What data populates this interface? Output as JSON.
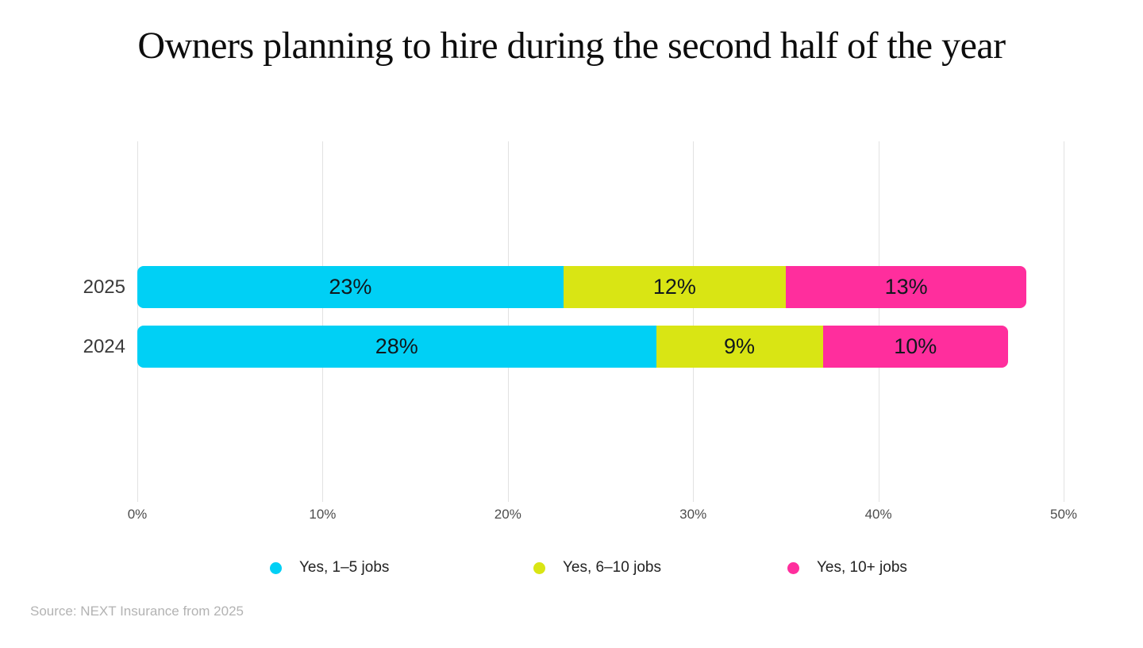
{
  "source": "Source: NEXT Insurance from 2025",
  "chart_data": {
    "type": "bar",
    "orientation": "horizontal",
    "stacked": true,
    "title": "Owners planning to hire during the second half of the year",
    "categories": [
      "2025",
      "2024"
    ],
    "series": [
      {
        "name": "Yes, 1–5 jobs",
        "color": "#00D0F5",
        "values": [
          23,
          28
        ]
      },
      {
        "name": "Yes, 6–10 jobs",
        "color": "#D9E514",
        "values": [
          12,
          9
        ]
      },
      {
        "name": "Yes, 10+ jobs",
        "color": "#FF2E9D",
        "values": [
          13,
          10
        ]
      }
    ],
    "value_suffix": "%",
    "x_axis": {
      "min": 0,
      "max": 50,
      "tick_values": [
        0,
        10,
        20,
        30,
        40,
        50
      ],
      "tick_labels": [
        "0%",
        "10%",
        "20%",
        "30%",
        "40%",
        "50%"
      ]
    },
    "grid": true,
    "legend_position": "bottom"
  }
}
